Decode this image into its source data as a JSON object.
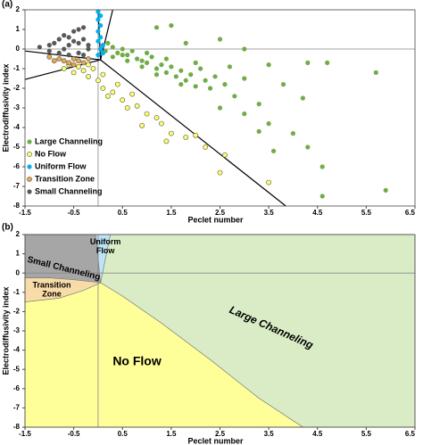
{
  "chart_data": [
    {
      "type": "scatter",
      "panel_label": "(a)",
      "xlabel": "Peclet number",
      "ylabel": "Electrodiffusivity index",
      "xlim": [
        -1.5,
        6.5
      ],
      "xticks": [
        -1.5,
        -0.5,
        0.5,
        1.5,
        2.5,
        3.5,
        4.5,
        5.5,
        6.5
      ],
      "ylim": [
        -8,
        2
      ],
      "yticks": [
        -8,
        -7,
        -6,
        -5,
        -4,
        -3,
        -2,
        -1,
        0,
        1,
        2
      ],
      "legend": "lower left",
      "series": [
        {
          "name": "Large Channeling",
          "color": "#70ad47",
          "x": [
            1.5,
            1.2,
            1.8,
            2.5,
            3.0,
            3.5,
            4.3,
            4.7,
            5.7,
            3.8,
            4.2,
            2.2,
            2.8,
            3.3,
            2.5,
            3.0,
            3.5,
            4.0,
            3.3,
            3.6,
            4.3,
            4.6,
            4.6,
            5.9,
            0.3,
            0.4,
            0.5,
            0.6,
            0.8,
            0.9,
            1.0,
            1.1,
            1.2,
            1.3,
            1.4,
            1.5,
            1.6,
            1.7,
            1.8,
            1.9,
            2.0,
            2.1,
            2.3,
            2.4,
            2.6,
            0.2,
            0.3,
            0.7,
            1.0,
            0.15,
            0.6,
            0.9,
            1.4,
            2.0,
            2.7,
            3.0,
            0.5,
            1.2,
            1.7
          ],
          "values": [
            1.2,
            1.1,
            0.3,
            0.5,
            0.0,
            -0.8,
            -0.7,
            -0.7,
            -1.2,
            -1.8,
            -2.5,
            -1.6,
            -2.4,
            -2.8,
            -3.0,
            -3.3,
            -3.8,
            -4.3,
            -4.2,
            -5.2,
            -5.0,
            -6.0,
            -7.5,
            -7.2,
            0.1,
            -0.2,
            -0.3,
            -0.3,
            -0.5,
            -0.6,
            -0.7,
            -0.4,
            -1.0,
            -0.8,
            -1.2,
            -0.9,
            -1.4,
            -1.1,
            -1.6,
            -1.3,
            -1.9,
            -1.0,
            -2.0,
            -1.4,
            -1.8,
            0.3,
            -0.4,
            -0.1,
            -0.2,
            -0.1,
            -0.6,
            -0.9,
            -0.5,
            -0.7,
            -0.9,
            -1.5,
            0.0,
            -1.3,
            -1.8
          ]
        },
        {
          "name": "No Flow",
          "color": "#ffff66",
          "x": [
            -0.6,
            -0.4,
            -0.3,
            -0.2,
            -0.5,
            -0.2,
            -0.1,
            0.0,
            0.1,
            0.1,
            0.3,
            0.4,
            0.5,
            0.6,
            0.8,
            1.0,
            1.2,
            0.9,
            1.3,
            1.5,
            1.8,
            1.4,
            2.2,
            2.6,
            2.0,
            2.5,
            3.5,
            -0.7,
            0.2,
            0.7
          ],
          "values": [
            -0.8,
            -0.9,
            -1.1,
            -0.8,
            -1.2,
            -1.4,
            -1.0,
            -1.6,
            -1.3,
            -2.0,
            -2.2,
            -1.8,
            -2.6,
            -3.0,
            -2.9,
            -3.3,
            -3.5,
            -3.9,
            -3.8,
            -4.3,
            -4.5,
            -4.7,
            -5.0,
            -5.4,
            -4.4,
            -6.3,
            -6.8,
            -1.0,
            -2.4,
            -2.3
          ]
        },
        {
          "name": "Uniform Flow",
          "color": "#00b0f0",
          "x": [
            0.0,
            0.0,
            0.05,
            0.0,
            0.05,
            0.0,
            0.1,
            0.05,
            0.1,
            0.0,
            0.05
          ],
          "values": [
            1.9,
            1.5,
            1.2,
            0.9,
            0.6,
            0.4,
            0.2,
            0.0,
            -0.2,
            -0.3,
            1.7
          ]
        },
        {
          "name": "Transition Zone",
          "color": "#e6a84a",
          "x": [
            -1.0,
            -0.8,
            -0.7,
            -0.5,
            -0.6,
            -0.4,
            -0.3,
            -0.2,
            -0.9,
            -0.5
          ],
          "values": [
            -0.4,
            -0.5,
            -0.6,
            -0.5,
            -0.7,
            -0.6,
            -0.7,
            -0.5,
            -0.6,
            -0.8
          ]
        },
        {
          "name": "Small Channeling",
          "color": "#595959",
          "x": [
            -1.2,
            -1.0,
            -0.9,
            -0.8,
            -0.7,
            -0.6,
            -0.5,
            -0.4,
            -0.3,
            -0.5,
            -0.4,
            -0.6,
            -0.3,
            -0.2,
            -0.7,
            -0.8,
            -0.6,
            -0.4,
            -0.2,
            -1.0,
            -0.3
          ],
          "values": [
            0.1,
            0.2,
            0.3,
            0.5,
            0.7,
            0.6,
            0.9,
            1.0,
            1.1,
            0.4,
            0.3,
            0.2,
            0.5,
            0.2,
            0.0,
            -0.2,
            -0.3,
            -0.2,
            0.0,
            -0.1,
            -0.3
          ]
        }
      ],
      "boundary_lines": [
        {
          "x": [
            0.05,
            -1.5
          ],
          "y": [
            -0.55,
            -0.1
          ]
        },
        {
          "x": [
            0.05,
            -1.5
          ],
          "y": [
            -0.55,
            -1.55
          ]
        },
        {
          "x": [
            0.05,
            3.85
          ],
          "y": [
            -0.55,
            -8
          ]
        },
        {
          "x": [
            0.05,
            0.0
          ],
          "y": [
            -0.55,
            2
          ]
        },
        {
          "x": [
            0.05,
            0.3
          ],
          "y": [
            -0.55,
            2
          ]
        }
      ]
    },
    {
      "type": "regions",
      "panel_label": "(b)",
      "xlabel": "Peclet number",
      "ylabel": "Electrodiffusivity index",
      "xlim": [
        -1.5,
        6.5
      ],
      "xticks": [
        -1.5,
        -0.5,
        0.5,
        1.5,
        2.5,
        3.5,
        4.5,
        5.5,
        6.5
      ],
      "ylim": [
        -8,
        2
      ],
      "yticks": [
        -8,
        -7,
        -6,
        -5,
        -4,
        -3,
        -2,
        -1,
        0,
        1,
        2
      ],
      "regions": [
        {
          "label_lines": [
            "Large Channeling"
          ],
          "color": "#d9ecc6",
          "x": [
            0.25,
            6.5,
            6.5,
            4.2,
            3.3,
            2.3,
            1.3,
            0.5,
            0.05
          ],
          "y": [
            2,
            2,
            -8,
            -8,
            -6.5,
            -4.5,
            -2.6,
            -1.2,
            -0.5
          ]
        },
        {
          "label_lines": [
            "No Flow"
          ],
          "color": "#ffff99",
          "x": [
            -1.5,
            -0.8,
            -0.3,
            0.05,
            0.5,
            1.3,
            2.3,
            3.3,
            4.2,
            -1.5
          ],
          "y": [
            -1.5,
            -1.3,
            -0.9,
            -0.5,
            -1.2,
            -2.6,
            -4.5,
            -6.5,
            -8,
            -8
          ]
        },
        {
          "label_lines": [
            "Small Channeling"
          ],
          "color": "#a6a6a6",
          "x": [
            -1.5,
            -0.05,
            0.05,
            -0.5,
            -1.0,
            -1.5
          ],
          "y": [
            2,
            2,
            -0.5,
            -0.35,
            -0.25,
            -0.25
          ]
        },
        {
          "label_lines": [
            "Transition",
            "Zone"
          ],
          "color": "#f8dca8",
          "x": [
            -1.5,
            -1.0,
            -0.5,
            0.05,
            -0.3,
            -0.8,
            -1.5
          ],
          "y": [
            -0.25,
            -0.25,
            -0.35,
            -0.5,
            -0.9,
            -1.3,
            -1.5
          ]
        },
        {
          "label_lines": [
            "Uniform",
            "Flow"
          ],
          "color": "#bde3f5",
          "x": [
            -0.05,
            0.25,
            0.05
          ],
          "y": [
            2,
            2,
            -0.5
          ]
        }
      ]
    }
  ]
}
